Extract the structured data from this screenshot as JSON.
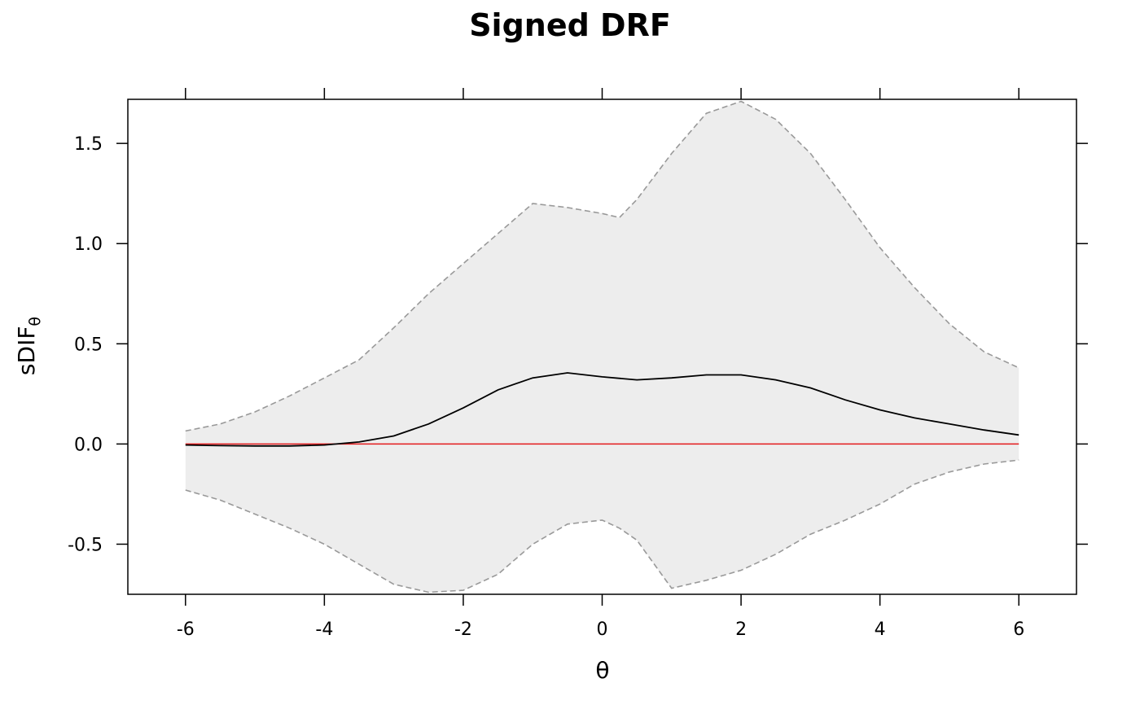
{
  "chart_data": {
    "type": "line",
    "title": "Signed DRF",
    "xlabel": "θ",
    "ylabel_main": "sDIF",
    "ylabel_subscript": "θ",
    "xlim": [
      -6.83,
      6.83
    ],
    "ylim": [
      -0.75,
      1.72
    ],
    "x_ticks": [
      -6,
      -4,
      -2,
      0,
      2,
      4,
      6
    ],
    "y_ticks": [
      -0.5,
      0.0,
      0.5,
      1.0,
      1.5
    ],
    "x_tick_labels": [
      "-6",
      "-4",
      "-2",
      "0",
      "2",
      "4",
      "6"
    ],
    "y_tick_labels": [
      "-0.5",
      "0.0",
      "0.5",
      "1.0",
      "1.5"
    ],
    "reference_line": {
      "y": 0,
      "color": "#e31a1c"
    },
    "band_fill_color": "#ededed",
    "band_line_color": "#999999",
    "line_color": "#000000",
    "grid": false,
    "series": [
      {
        "role": "estimate",
        "x": [
          -6,
          -5.5,
          -5,
          -4.5,
          -4,
          -3.5,
          -3,
          -2.5,
          -2,
          -1.5,
          -1,
          -0.5,
          0,
          0.5,
          1,
          1.5,
          2,
          2.5,
          3,
          3.5,
          4,
          4.5,
          5,
          5.5,
          6
        ],
        "y": [
          -0.005,
          -0.008,
          -0.01,
          -0.01,
          -0.005,
          0.01,
          0.04,
          0.1,
          0.18,
          0.27,
          0.33,
          0.355,
          0.335,
          0.32,
          0.33,
          0.345,
          0.345,
          0.32,
          0.28,
          0.22,
          0.17,
          0.13,
          0.1,
          0.07,
          0.045
        ]
      },
      {
        "role": "upper-ci",
        "x": [
          -6,
          -5.5,
          -5,
          -4.5,
          -4,
          -3.5,
          -3,
          -2.5,
          -2,
          -1.5,
          -1,
          -0.5,
          0,
          0.25,
          0.5,
          1,
          1.5,
          2,
          2.5,
          3,
          3.5,
          4,
          4.5,
          5,
          5.5,
          6
        ],
        "y": [
          0.065,
          0.1,
          0.16,
          0.24,
          0.33,
          0.42,
          0.58,
          0.75,
          0.9,
          1.05,
          1.2,
          1.18,
          1.15,
          1.13,
          1.22,
          1.45,
          1.65,
          1.71,
          1.62,
          1.45,
          1.22,
          0.98,
          0.78,
          0.6,
          0.46,
          0.38
        ]
      },
      {
        "role": "lower-ci",
        "x": [
          -6,
          -5.5,
          -5,
          -4.5,
          -4,
          -3.5,
          -3,
          -2.5,
          -2,
          -1.5,
          -1,
          -0.5,
          0,
          0.25,
          0.5,
          1,
          1.5,
          2,
          2.5,
          3,
          3.5,
          4,
          4.5,
          5,
          5.5,
          6
        ],
        "y": [
          -0.23,
          -0.28,
          -0.35,
          -0.42,
          -0.5,
          -0.6,
          -0.7,
          -0.74,
          -0.73,
          -0.65,
          -0.5,
          -0.4,
          -0.38,
          -0.42,
          -0.48,
          -0.72,
          -0.68,
          -0.63,
          -0.55,
          -0.45,
          -0.38,
          -0.3,
          -0.2,
          -0.14,
          -0.1,
          -0.08
        ]
      }
    ]
  }
}
